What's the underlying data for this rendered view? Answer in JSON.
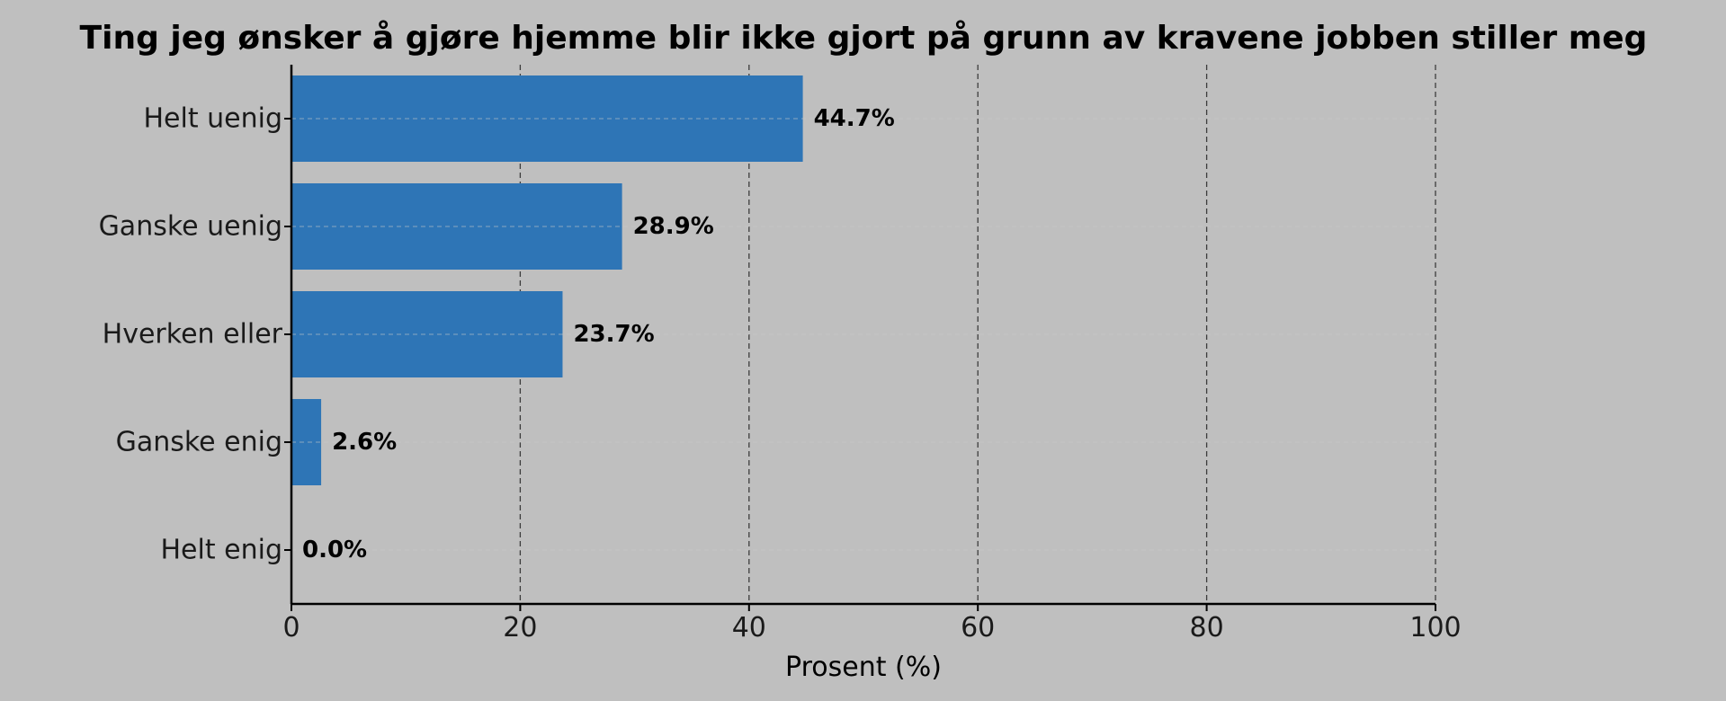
{
  "chart_data": {
    "type": "bar",
    "orientation": "horizontal",
    "title": "Ting jeg ønsker å gjøre hjemme blir ikke gjort på grunn av kravene jobben stiller meg",
    "xlabel": "Prosent (%)",
    "ylabel": "",
    "categories": [
      "Helt uenig",
      "Ganske uenig",
      "Hverken eller",
      "Ganske enig",
      "Helt enig"
    ],
    "values": [
      44.7,
      28.9,
      23.7,
      2.6,
      0.0
    ],
    "value_labels": [
      "44.7%",
      "28.9%",
      "23.7%",
      "2.6%",
      "0.0%"
    ],
    "xlim": [
      0,
      100
    ],
    "xticks": [
      0,
      20,
      40,
      60,
      80,
      100
    ],
    "xtick_labels": [
      "0",
      "20",
      "40",
      "60",
      "80",
      "100"
    ],
    "grid": true,
    "bar_color": "#2e75b6",
    "background_color": "#bfbfbf"
  }
}
